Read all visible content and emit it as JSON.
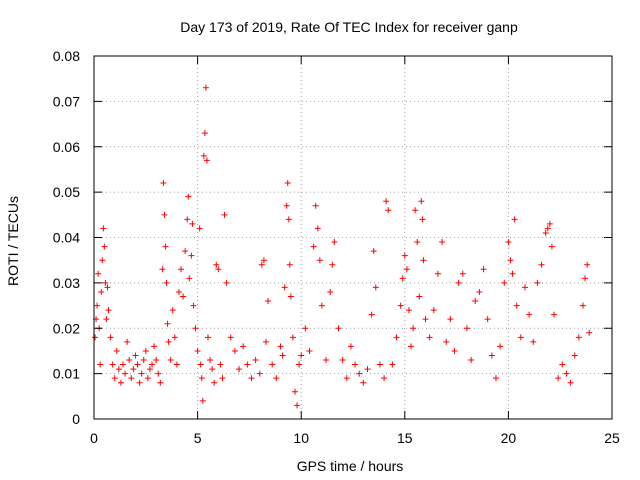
{
  "chart_data": {
    "type": "scatter",
    "title": "Day 173 of 2019, Rate Of TEC Index for receiver ganp",
    "xlabel": "GPS time / hours",
    "ylabel": "ROTI / TECUs",
    "xlim": [
      0,
      25
    ],
    "ylim": [
      0,
      0.08
    ],
    "x_ticks": [
      0,
      5,
      10,
      15,
      20,
      25
    ],
    "y_ticks": [
      0,
      0.01,
      0.02,
      0.03,
      0.04,
      0.05,
      0.06,
      0.07,
      0.08
    ],
    "x_tick_labels": [
      "0",
      "5",
      "10",
      "15",
      "20",
      "25"
    ],
    "y_tick_labels": [
      "0",
      "0.01",
      "0.02",
      "0.03",
      "0.04",
      "0.05",
      "0.06",
      "0.07",
      "0.08"
    ],
    "grid": true,
    "marker": "+",
    "color": "#ff0000",
    "series": [
      {
        "name": "ROTI",
        "points": [
          [
            0.05,
            0.018
          ],
          [
            0.1,
            0.022
          ],
          [
            0.15,
            0.025
          ],
          [
            0.2,
            0.032
          ],
          [
            0.25,
            0.02
          ],
          [
            0.3,
            0.012
          ],
          [
            0.35,
            0.028
          ],
          [
            0.4,
            0.035
          ],
          [
            0.45,
            0.042
          ],
          [
            0.5,
            0.038
          ],
          [
            0.55,
            0.03
          ],
          [
            0.6,
            0.022
          ],
          [
            0.65,
            0.029
          ],
          [
            0.7,
            0.024
          ],
          [
            0.8,
            0.018
          ],
          [
            0.9,
            0.012
          ],
          [
            1.0,
            0.009
          ],
          [
            1.1,
            0.015
          ],
          [
            1.2,
            0.011
          ],
          [
            1.3,
            0.008
          ],
          [
            1.4,
            0.012
          ],
          [
            1.5,
            0.01
          ],
          [
            1.6,
            0.017
          ],
          [
            1.7,
            0.013
          ],
          [
            1.8,
            0.009
          ],
          [
            1.9,
            0.011
          ],
          [
            2.0,
            0.014
          ],
          [
            2.1,
            0.012
          ],
          [
            2.2,
            0.008
          ],
          [
            2.3,
            0.01
          ],
          [
            2.4,
            0.013
          ],
          [
            2.5,
            0.015
          ],
          [
            2.6,
            0.009
          ],
          [
            2.7,
            0.011
          ],
          [
            2.8,
            0.012
          ],
          [
            2.9,
            0.016
          ],
          [
            3.0,
            0.013
          ],
          [
            3.1,
            0.01
          ],
          [
            3.2,
            0.008
          ],
          [
            3.3,
            0.033
          ],
          [
            3.35,
            0.052
          ],
          [
            3.4,
            0.045
          ],
          [
            3.45,
            0.038
          ],
          [
            3.5,
            0.03
          ],
          [
            3.55,
            0.021
          ],
          [
            3.6,
            0.017
          ],
          [
            3.7,
            0.013
          ],
          [
            3.8,
            0.024
          ],
          [
            3.9,
            0.018
          ],
          [
            4.0,
            0.012
          ],
          [
            4.1,
            0.028
          ],
          [
            4.2,
            0.033
          ],
          [
            4.3,
            0.027
          ],
          [
            4.4,
            0.037
          ],
          [
            4.5,
            0.044
          ],
          [
            4.55,
            0.049
          ],
          [
            4.6,
            0.031
          ],
          [
            4.7,
            0.036
          ],
          [
            4.75,
            0.043
          ],
          [
            4.8,
            0.025
          ],
          [
            4.9,
            0.02
          ],
          [
            5.0,
            0.015
          ],
          [
            5.1,
            0.042
          ],
          [
            5.15,
            0.012
          ],
          [
            5.2,
            0.009
          ],
          [
            5.25,
            0.004
          ],
          [
            5.3,
            0.058
          ],
          [
            5.35,
            0.063
          ],
          [
            5.4,
            0.073
          ],
          [
            5.45,
            0.057
          ],
          [
            5.5,
            0.018
          ],
          [
            5.6,
            0.013
          ],
          [
            5.7,
            0.011
          ],
          [
            5.8,
            0.008
          ],
          [
            5.9,
            0.034
          ],
          [
            6.0,
            0.033
          ],
          [
            6.1,
            0.012
          ],
          [
            6.2,
            0.009
          ],
          [
            6.3,
            0.045
          ],
          [
            6.4,
            0.03
          ],
          [
            6.6,
            0.018
          ],
          [
            6.8,
            0.015
          ],
          [
            7.0,
            0.011
          ],
          [
            7.2,
            0.016
          ],
          [
            7.4,
            0.012
          ],
          [
            7.6,
            0.009
          ],
          [
            7.8,
            0.013
          ],
          [
            8.0,
            0.01
          ],
          [
            8.1,
            0.034
          ],
          [
            8.2,
            0.035
          ],
          [
            8.3,
            0.017
          ],
          [
            8.4,
            0.026
          ],
          [
            8.6,
            0.012
          ],
          [
            8.8,
            0.009
          ],
          [
            9.0,
            0.016
          ],
          [
            9.1,
            0.014
          ],
          [
            9.2,
            0.029
          ],
          [
            9.3,
            0.047
          ],
          [
            9.35,
            0.052
          ],
          [
            9.4,
            0.044
          ],
          [
            9.45,
            0.034
          ],
          [
            9.5,
            0.027
          ],
          [
            9.6,
            0.018
          ],
          [
            9.7,
            0.006
          ],
          [
            9.8,
            0.003
          ],
          [
            9.9,
            0.012
          ],
          [
            10.0,
            0.014
          ],
          [
            10.2,
            0.02
          ],
          [
            10.4,
            0.015
          ],
          [
            10.6,
            0.038
          ],
          [
            10.7,
            0.047
          ],
          [
            10.8,
            0.042
          ],
          [
            10.9,
            0.035
          ],
          [
            11.0,
            0.025
          ],
          [
            11.2,
            0.013
          ],
          [
            11.4,
            0.028
          ],
          [
            11.5,
            0.034
          ],
          [
            11.6,
            0.039
          ],
          [
            11.8,
            0.02
          ],
          [
            12.0,
            0.013
          ],
          [
            12.2,
            0.009
          ],
          [
            12.4,
            0.016
          ],
          [
            12.6,
            0.012
          ],
          [
            12.8,
            0.01
          ],
          [
            13.0,
            0.008
          ],
          [
            13.2,
            0.011
          ],
          [
            13.4,
            0.023
          ],
          [
            13.5,
            0.037
          ],
          [
            13.6,
            0.029
          ],
          [
            13.8,
            0.012
          ],
          [
            14.0,
            0.009
          ],
          [
            14.1,
            0.048
          ],
          [
            14.2,
            0.046
          ],
          [
            14.4,
            0.012
          ],
          [
            14.6,
            0.018
          ],
          [
            14.8,
            0.025
          ],
          [
            14.9,
            0.031
          ],
          [
            15.0,
            0.036
          ],
          [
            15.1,
            0.033
          ],
          [
            15.2,
            0.024
          ],
          [
            15.3,
            0.016
          ],
          [
            15.4,
            0.02
          ],
          [
            15.5,
            0.046
          ],
          [
            15.6,
            0.039
          ],
          [
            15.7,
            0.027
          ],
          [
            15.8,
            0.048
          ],
          [
            15.85,
            0.044
          ],
          [
            15.9,
            0.035
          ],
          [
            16.0,
            0.022
          ],
          [
            16.2,
            0.018
          ],
          [
            16.4,
            0.024
          ],
          [
            16.6,
            0.032
          ],
          [
            16.8,
            0.039
          ],
          [
            17.0,
            0.017
          ],
          [
            17.2,
            0.022
          ],
          [
            17.4,
            0.015
          ],
          [
            17.6,
            0.03
          ],
          [
            17.8,
            0.032
          ],
          [
            18.0,
            0.02
          ],
          [
            18.2,
            0.013
          ],
          [
            18.4,
            0.026
          ],
          [
            18.6,
            0.028
          ],
          [
            18.8,
            0.033
          ],
          [
            19.0,
            0.022
          ],
          [
            19.2,
            0.014
          ],
          [
            19.4,
            0.009
          ],
          [
            19.6,
            0.016
          ],
          [
            19.8,
            0.03
          ],
          [
            20.0,
            0.039
          ],
          [
            20.1,
            0.035
          ],
          [
            20.2,
            0.032
          ],
          [
            20.3,
            0.044
          ],
          [
            20.4,
            0.025
          ],
          [
            20.6,
            0.018
          ],
          [
            20.8,
            0.029
          ],
          [
            21.0,
            0.023
          ],
          [
            21.2,
            0.017
          ],
          [
            21.4,
            0.03
          ],
          [
            21.6,
            0.034
          ],
          [
            21.8,
            0.041
          ],
          [
            21.9,
            0.042
          ],
          [
            22.0,
            0.043
          ],
          [
            22.1,
            0.038
          ],
          [
            22.2,
            0.023
          ],
          [
            22.4,
            0.009
          ],
          [
            22.6,
            0.012
          ],
          [
            22.8,
            0.01
          ],
          [
            23.0,
            0.008
          ],
          [
            23.2,
            0.014
          ],
          [
            23.4,
            0.018
          ],
          [
            23.6,
            0.025
          ],
          [
            23.7,
            0.031
          ],
          [
            23.8,
            0.034
          ],
          [
            23.9,
            0.019
          ]
        ]
      }
    ]
  }
}
